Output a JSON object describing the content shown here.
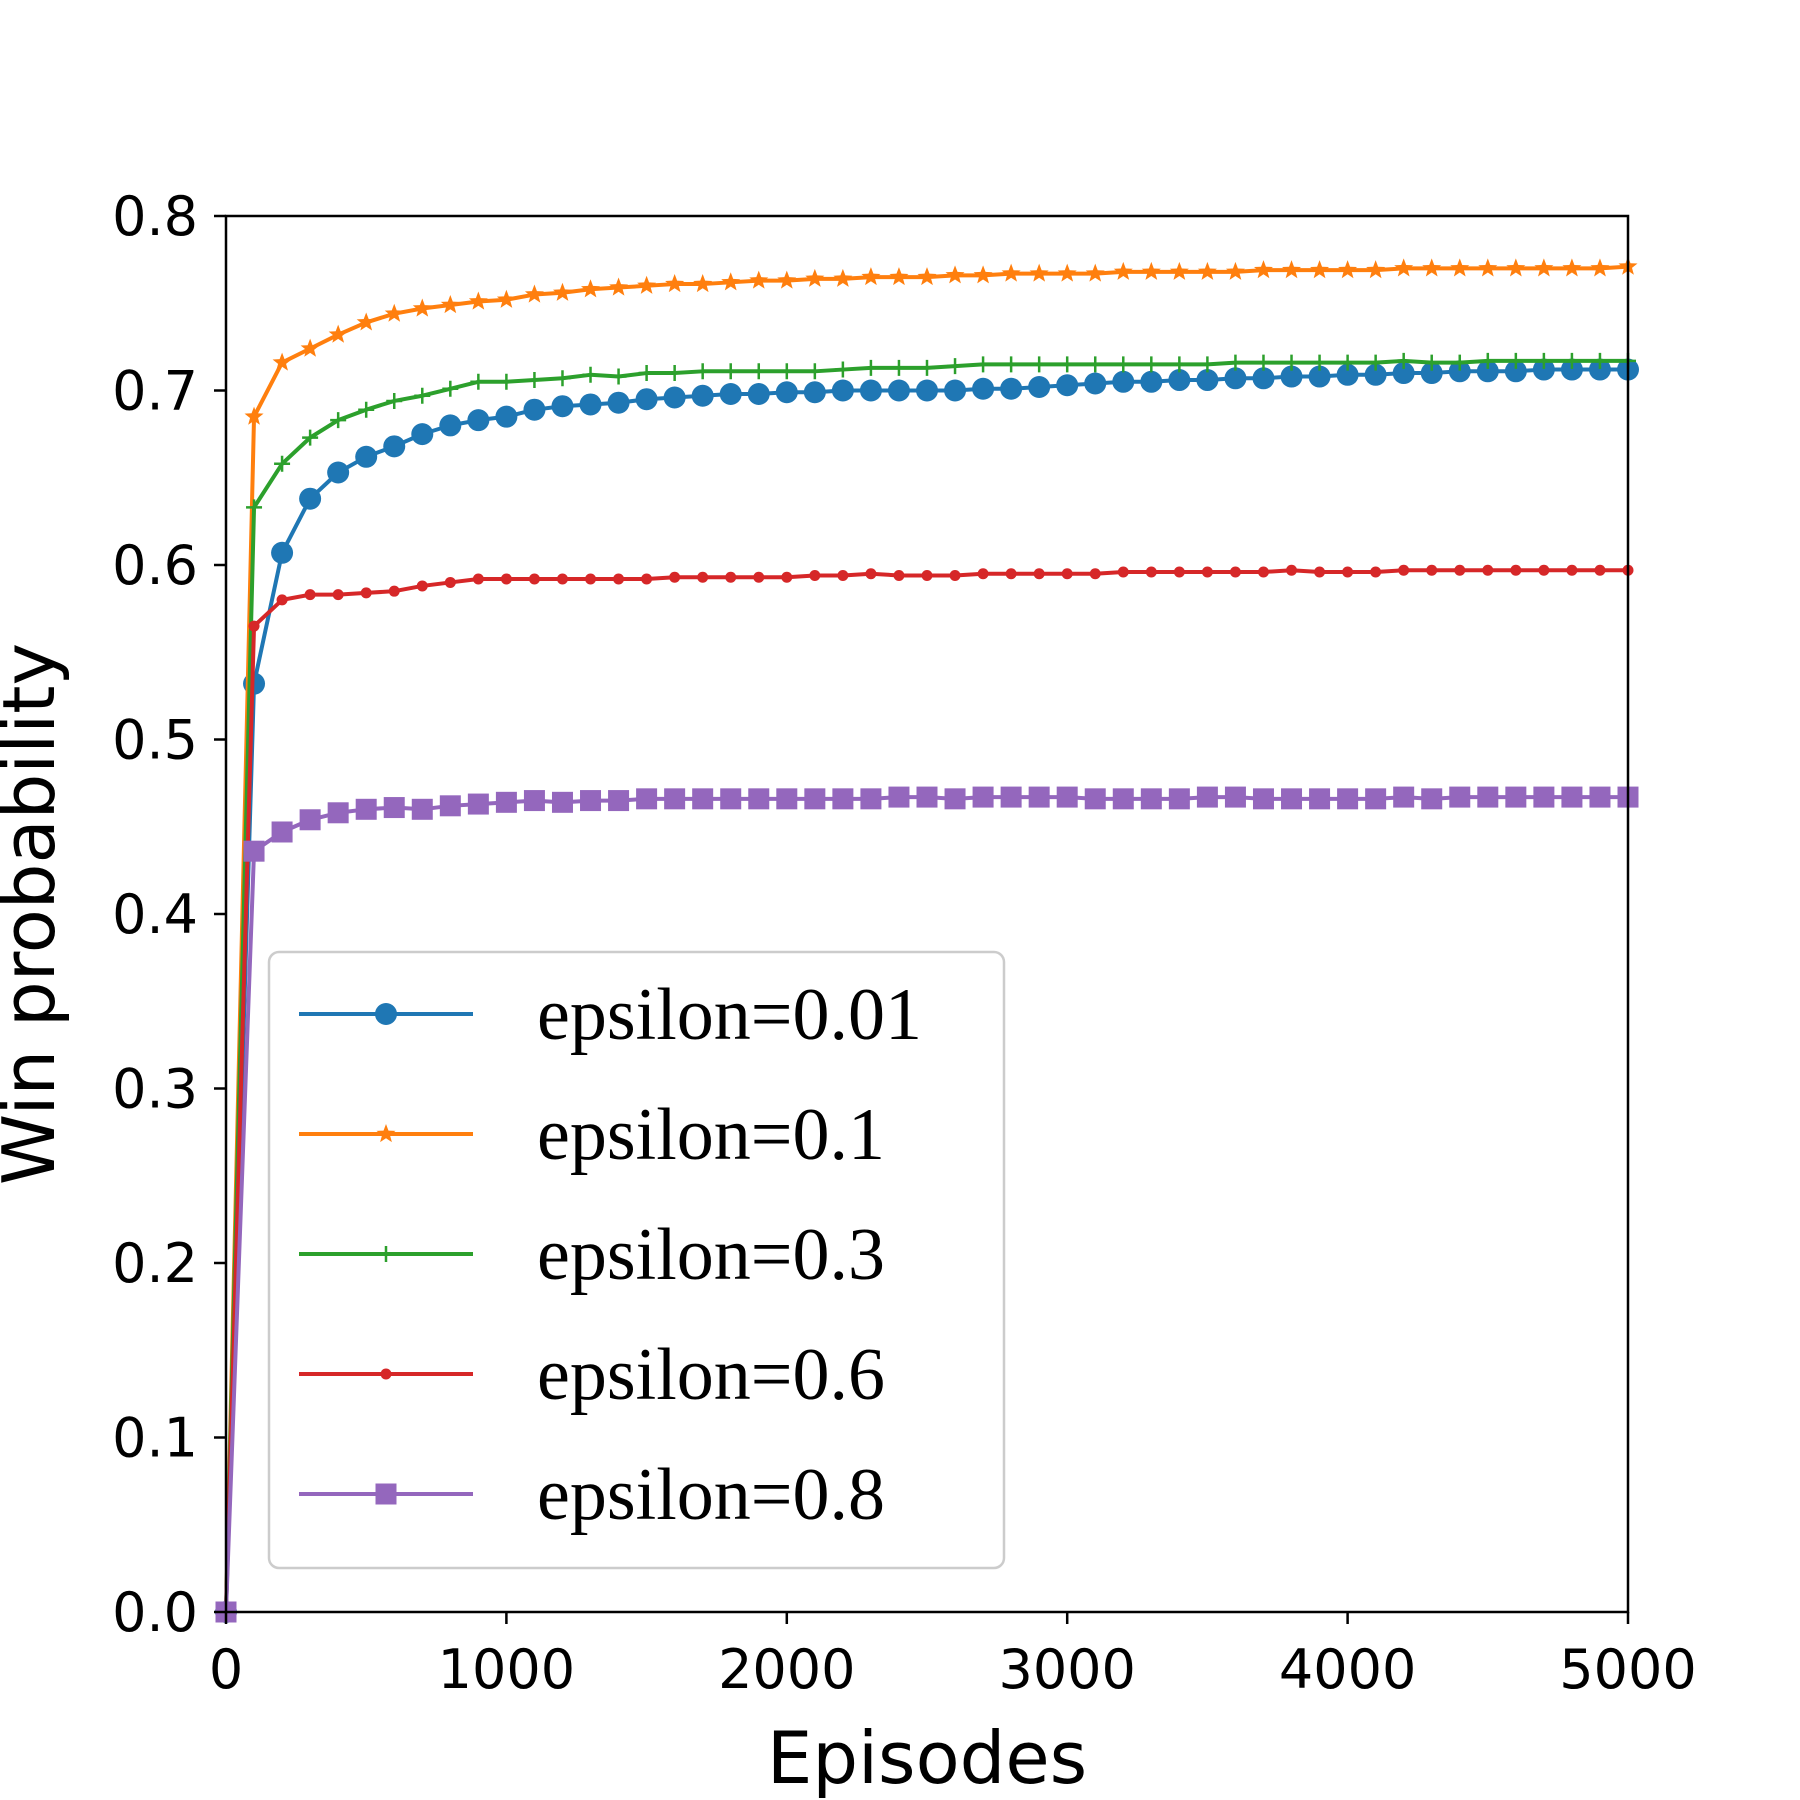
{
  "chart_data": {
    "type": "line",
    "title": "",
    "xlabel": "Episodes",
    "ylabel": "Win probability",
    "xlim": [
      0,
      5000
    ],
    "ylim": [
      0,
      0.8
    ],
    "xticks": [
      0,
      1000,
      2000,
      3000,
      4000,
      5000
    ],
    "xtick_labels": [
      "0",
      "1000",
      "2000",
      "3000",
      "4000",
      "5000"
    ],
    "yticks": [
      0,
      0.1,
      0.2,
      0.3,
      0.4,
      0.5,
      0.6,
      0.7,
      0.8
    ],
    "ytick_labels": [
      "0.0",
      "0.1",
      "0.2",
      "0.3",
      "0.4",
      "0.5",
      "0.6",
      "0.7",
      "0.8"
    ],
    "grid": false,
    "legend_position": "lower-left",
    "x": [
      0,
      100,
      200,
      300,
      400,
      500,
      600,
      700,
      800,
      900,
      1000,
      1100,
      1200,
      1300,
      1400,
      1500,
      1600,
      1700,
      1800,
      1900,
      2000,
      2100,
      2200,
      2300,
      2400,
      2500,
      2600,
      2700,
      2800,
      2900,
      3000,
      3100,
      3200,
      3300,
      3400,
      3500,
      3600,
      3700,
      3800,
      3900,
      4000,
      4100,
      4200,
      4300,
      4400,
      4500,
      4600,
      4700,
      4800,
      4900,
      5000
    ],
    "series": [
      {
        "name": "epsilon=0.01",
        "color": "#1f77b4",
        "marker": "circle",
        "values": [
          0.0,
          0.532,
          0.607,
          0.638,
          0.653,
          0.662,
          0.668,
          0.675,
          0.68,
          0.683,
          0.685,
          0.689,
          0.691,
          0.692,
          0.693,
          0.695,
          0.696,
          0.697,
          0.698,
          0.698,
          0.699,
          0.699,
          0.7,
          0.7,
          0.7,
          0.7,
          0.7,
          0.701,
          0.701,
          0.702,
          0.703,
          0.704,
          0.705,
          0.705,
          0.706,
          0.706,
          0.707,
          0.707,
          0.708,
          0.708,
          0.709,
          0.709,
          0.71,
          0.71,
          0.711,
          0.711,
          0.711,
          0.712,
          0.712,
          0.712,
          0.712
        ]
      },
      {
        "name": "epsilon=0.1",
        "color": "#ff7f0e",
        "marker": "star",
        "values": [
          0.0,
          0.685,
          0.716,
          0.724,
          0.732,
          0.739,
          0.744,
          0.747,
          0.749,
          0.751,
          0.752,
          0.755,
          0.756,
          0.758,
          0.759,
          0.76,
          0.761,
          0.761,
          0.762,
          0.763,
          0.763,
          0.764,
          0.764,
          0.765,
          0.765,
          0.765,
          0.766,
          0.766,
          0.767,
          0.767,
          0.767,
          0.767,
          0.768,
          0.768,
          0.768,
          0.768,
          0.768,
          0.769,
          0.769,
          0.769,
          0.769,
          0.769,
          0.77,
          0.77,
          0.77,
          0.77,
          0.77,
          0.77,
          0.77,
          0.77,
          0.771
        ]
      },
      {
        "name": "epsilon=0.3",
        "color": "#2ca02c",
        "marker": "plus",
        "values": [
          0.0,
          0.633,
          0.658,
          0.673,
          0.683,
          0.689,
          0.694,
          0.697,
          0.701,
          0.705,
          0.705,
          0.706,
          0.707,
          0.709,
          0.708,
          0.71,
          0.71,
          0.711,
          0.711,
          0.711,
          0.711,
          0.711,
          0.712,
          0.713,
          0.713,
          0.713,
          0.714,
          0.715,
          0.715,
          0.715,
          0.715,
          0.715,
          0.715,
          0.715,
          0.715,
          0.715,
          0.716,
          0.716,
          0.716,
          0.716,
          0.716,
          0.716,
          0.717,
          0.716,
          0.716,
          0.717,
          0.717,
          0.717,
          0.717,
          0.717,
          0.717
        ]
      },
      {
        "name": "epsilon=0.6",
        "color": "#d62728",
        "marker": "point",
        "values": [
          0.0,
          0.565,
          0.58,
          0.583,
          0.583,
          0.584,
          0.585,
          0.588,
          0.59,
          0.592,
          0.592,
          0.592,
          0.592,
          0.592,
          0.592,
          0.592,
          0.593,
          0.593,
          0.593,
          0.593,
          0.593,
          0.594,
          0.594,
          0.595,
          0.594,
          0.594,
          0.594,
          0.595,
          0.595,
          0.595,
          0.595,
          0.595,
          0.596,
          0.596,
          0.596,
          0.596,
          0.596,
          0.596,
          0.597,
          0.596,
          0.596,
          0.596,
          0.597,
          0.597,
          0.597,
          0.597,
          0.597,
          0.597,
          0.597,
          0.597,
          0.597
        ]
      },
      {
        "name": "epsilon=0.8",
        "color": "#9467bd",
        "marker": "square",
        "values": [
          0.0,
          0.436,
          0.447,
          0.454,
          0.458,
          0.46,
          0.461,
          0.46,
          0.462,
          0.463,
          0.464,
          0.465,
          0.464,
          0.465,
          0.465,
          0.466,
          0.466,
          0.466,
          0.466,
          0.466,
          0.466,
          0.466,
          0.466,
          0.466,
          0.467,
          0.467,
          0.466,
          0.467,
          0.467,
          0.467,
          0.467,
          0.466,
          0.466,
          0.466,
          0.466,
          0.467,
          0.467,
          0.466,
          0.466,
          0.466,
          0.466,
          0.466,
          0.467,
          0.466,
          0.467,
          0.467,
          0.467,
          0.467,
          0.467,
          0.467,
          0.467
        ]
      }
    ]
  }
}
